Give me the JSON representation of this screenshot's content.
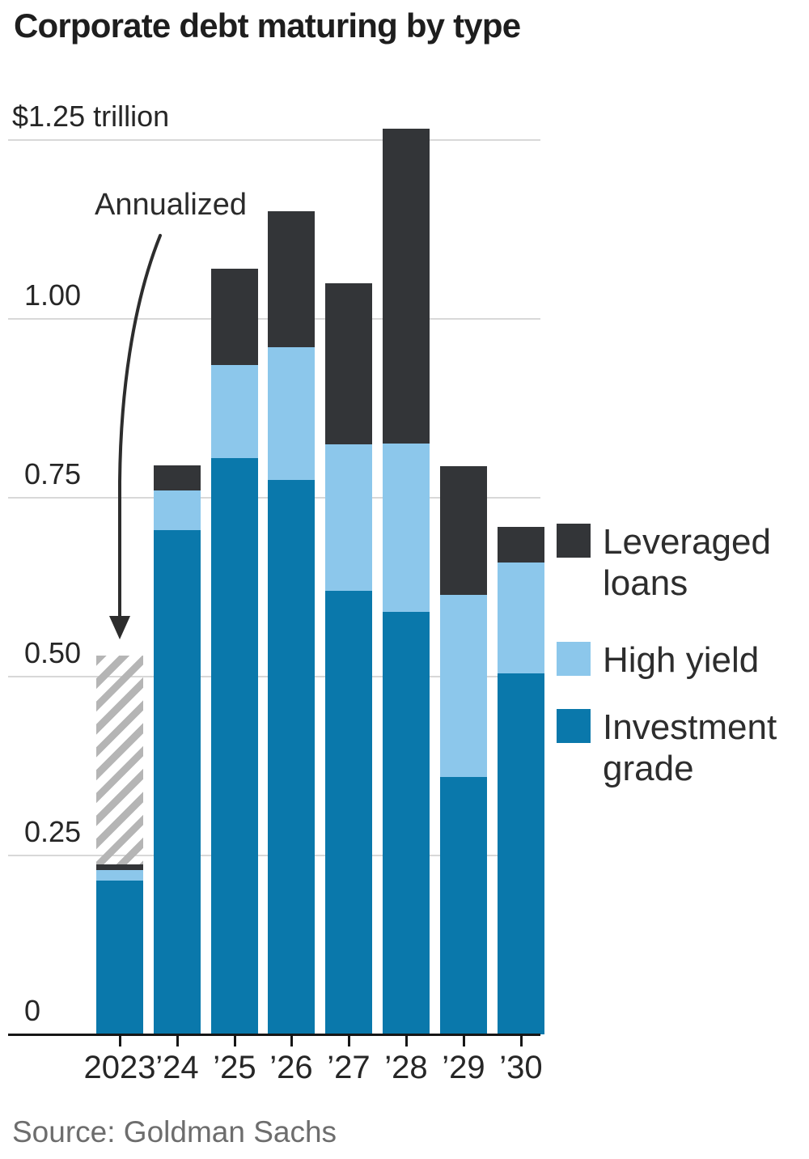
{
  "title": "Corporate debt maturing by type",
  "annotation": {
    "label": "Annualized"
  },
  "source": "Source: Goldman Sachs",
  "y_axis": {
    "ticks": [
      {
        "v": 0,
        "label": "0"
      },
      {
        "v": 0.25,
        "label": "0.25"
      },
      {
        "v": 0.5,
        "label": "0.50"
      },
      {
        "v": 0.75,
        "label": "0.75"
      },
      {
        "v": 1,
        "label": "1.00"
      },
      {
        "v": 1.25,
        "label": "$1.25 trillion"
      }
    ]
  },
  "legend": {
    "items": [
      {
        "label": "Leveraged loans",
        "color": "#333538"
      },
      {
        "label": "High yield",
        "color": "#8cc7eb"
      },
      {
        "label": "Investment grade",
        "color": "#0a78ab"
      }
    ]
  },
  "chart_data": {
    "type": "bar",
    "stacked": true,
    "title": "Corporate debt maturing by type",
    "unit": "trillion USD",
    "categories": [
      "2023",
      "’24",
      "’25",
      "’26",
      "’27",
      "’28",
      "’29",
      "’30"
    ],
    "series": [
      {
        "name": "Investment grade",
        "color": "#0a78ab",
        "values": [
          0.215,
          0.705,
          0.805,
          0.775,
          0.62,
          0.59,
          0.36,
          0.505
        ]
      },
      {
        "name": "High yield",
        "color": "#8cc7eb",
        "values": [
          0.015,
          0.055,
          0.13,
          0.185,
          0.205,
          0.235,
          0.255,
          0.155
        ]
      },
      {
        "name": "Leveraged loans",
        "color": "#333538",
        "values": [
          0.008,
          0.035,
          0.135,
          0.19,
          0.225,
          0.44,
          0.18,
          0.05
        ]
      }
    ],
    "annualized": {
      "category": "2023",
      "category_index": 0,
      "total": 0.53,
      "note": "Annualized"
    },
    "ylim": [
      0,
      1.3
    ],
    "yticks": [
      0,
      0.25,
      0.5,
      0.75,
      1.0,
      1.25
    ],
    "grid": true,
    "legend_position": "right",
    "hatch_color": "#b5b5b5"
  }
}
